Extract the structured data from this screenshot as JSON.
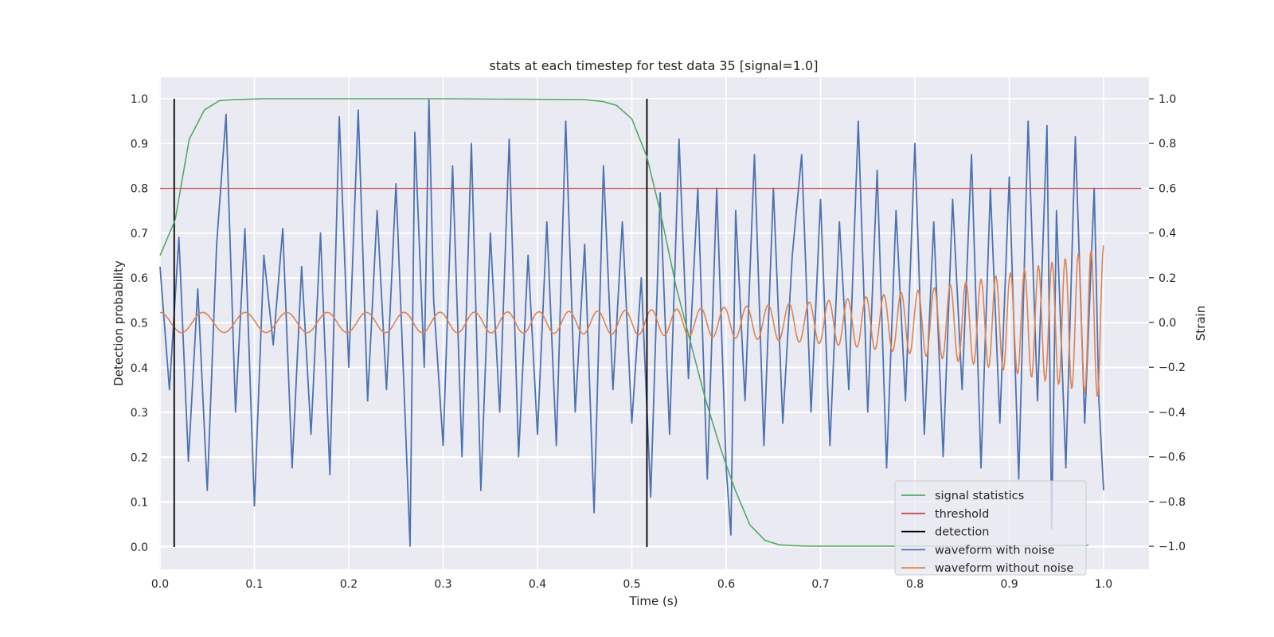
{
  "chart_data": {
    "type": "line",
    "title": "stats at each timestep for test data 35 [signal=1.0]",
    "xlabel": "Time (s)",
    "ylabel": "Detection probability",
    "y2label": "Strain",
    "xlim": [
      0.0,
      1.05
    ],
    "ylim": [
      -0.045,
      1.045
    ],
    "y2lim": [
      -1.09,
      1.09
    ],
    "xticks": [
      0.0,
      0.1,
      0.2,
      0.3,
      0.4,
      0.5,
      0.6,
      0.7,
      0.8,
      0.9,
      1.0
    ],
    "xtick_labels": [
      "0.0",
      "0.1",
      "0.2",
      "0.3",
      "0.4",
      "0.5",
      "0.6",
      "0.7",
      "0.8",
      "0.9",
      "1.0"
    ],
    "yticks": [
      0.0,
      0.1,
      0.2,
      0.3,
      0.4,
      0.5,
      0.6,
      0.7,
      0.8,
      0.9,
      1.0
    ],
    "ytick_labels": [
      "0.0",
      "0.1",
      "0.2",
      "0.3",
      "0.4",
      "0.5",
      "0.6",
      "0.7",
      "0.8",
      "0.9",
      "1.0"
    ],
    "y2ticks": [
      -1.0,
      -0.8,
      -0.6,
      -0.4,
      -0.2,
      0.0,
      0.2,
      0.4,
      0.6,
      0.8,
      1.0
    ],
    "y2tick_labels": [
      "−1.0",
      "−0.8",
      "−0.6",
      "−0.4",
      "−0.2",
      "0.0",
      "0.2",
      "0.4",
      "0.6",
      "0.8",
      "1.0"
    ],
    "grid": true,
    "legend_position": "lower-right",
    "threshold": 0.8,
    "detections": [
      0.015,
      0.516
    ],
    "series": [
      {
        "name": "signal statistics",
        "color": "#55a868",
        "axis": "left",
        "x": [
          0.0,
          0.016,
          0.031,
          0.047,
          0.063,
          0.078,
          0.094,
          0.109,
          0.125,
          0.3,
          0.45,
          0.469,
          0.484,
          0.5,
          0.516,
          0.531,
          0.547,
          0.563,
          0.578,
          0.594,
          0.609,
          0.625,
          0.641,
          0.656,
          0.672,
          0.688,
          0.7,
          0.8,
          0.9,
          0.984
        ],
        "values": [
          0.65,
          0.73,
          0.91,
          0.975,
          0.996,
          0.998,
          0.999,
          1.0,
          1.0,
          1.0,
          0.998,
          0.994,
          0.985,
          0.955,
          0.87,
          0.74,
          0.58,
          0.45,
          0.33,
          0.22,
          0.13,
          0.05,
          0.015,
          0.005,
          0.003,
          0.002,
          0.002,
          0.002,
          0.002,
          0.004
        ]
      },
      {
        "name": "threshold",
        "color": "#c44e52",
        "axis": "left",
        "x": [
          0.0,
          1.04
        ],
        "values": [
          0.8,
          0.8
        ]
      },
      {
        "name": "detection",
        "color": "#000000",
        "axis": "left"
      },
      {
        "name": "waveform with noise",
        "color": "#4c72b0",
        "axis": "right",
        "x": [
          0.0,
          0.01,
          0.02,
          0.03,
          0.04,
          0.05,
          0.06,
          0.07,
          0.08,
          0.09,
          0.1,
          0.11,
          0.12,
          0.13,
          0.14,
          0.15,
          0.16,
          0.17,
          0.18,
          0.19,
          0.2,
          0.21,
          0.22,
          0.23,
          0.24,
          0.25,
          0.26,
          0.265,
          0.27,
          0.28,
          0.285,
          0.29,
          0.3,
          0.31,
          0.32,
          0.33,
          0.34,
          0.35,
          0.36,
          0.37,
          0.38,
          0.39,
          0.4,
          0.41,
          0.42,
          0.43,
          0.44,
          0.45,
          0.46,
          0.47,
          0.48,
          0.49,
          0.5,
          0.51,
          0.52,
          0.53,
          0.54,
          0.55,
          0.56,
          0.57,
          0.58,
          0.59,
          0.6,
          0.605,
          0.61,
          0.62,
          0.63,
          0.64,
          0.65,
          0.66,
          0.67,
          0.68,
          0.69,
          0.7,
          0.71,
          0.72,
          0.73,
          0.74,
          0.75,
          0.76,
          0.77,
          0.78,
          0.79,
          0.8,
          0.81,
          0.82,
          0.83,
          0.84,
          0.85,
          0.86,
          0.87,
          0.88,
          0.89,
          0.9,
          0.91,
          0.92,
          0.93,
          0.94,
          0.945,
          0.95,
          0.96,
          0.97,
          0.98,
          0.99,
          0.995,
          1.0
        ],
        "values": [
          0.25,
          -0.3,
          0.38,
          -0.62,
          0.15,
          -0.75,
          0.35,
          0.93,
          -0.4,
          0.42,
          -0.82,
          0.3,
          -0.1,
          0.42,
          -0.65,
          0.25,
          -0.5,
          0.4,
          -0.68,
          0.92,
          -0.2,
          0.95,
          -0.35,
          0.5,
          -0.3,
          0.62,
          -0.45,
          -1.0,
          0.85,
          -0.2,
          1.0,
          0.1,
          -0.55,
          0.7,
          -0.6,
          0.8,
          -0.75,
          0.4,
          -0.4,
          0.82,
          -0.6,
          0.3,
          -0.5,
          0.45,
          -0.55,
          0.9,
          -0.4,
          0.35,
          -0.85,
          0.7,
          -0.3,
          0.45,
          -0.45,
          0.2,
          -0.78,
          0.58,
          -0.5,
          0.82,
          -0.25,
          0.6,
          -0.7,
          0.6,
          -0.65,
          -0.95,
          0.5,
          -0.35,
          0.75,
          -0.55,
          0.6,
          -0.45,
          0.3,
          0.75,
          -0.4,
          0.55,
          -0.55,
          0.45,
          -0.3,
          0.9,
          -0.4,
          0.68,
          -0.65,
          0.5,
          -0.35,
          0.8,
          -0.5,
          0.45,
          -0.6,
          0.55,
          -0.3,
          0.75,
          -0.65,
          0.6,
          -0.45,
          0.65,
          -0.7,
          0.9,
          -0.35,
          0.88,
          -0.92,
          0.5,
          -0.65,
          0.83,
          -0.45,
          0.6,
          -0.35,
          -0.75
        ]
      },
      {
        "name": "waveform without noise",
        "color": "#dd8452",
        "axis": "right"
      }
    ]
  }
}
